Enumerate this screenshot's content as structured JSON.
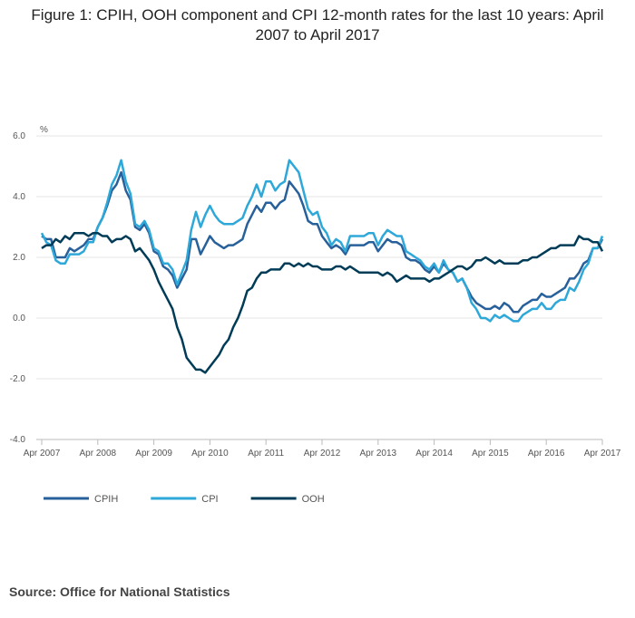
{
  "chart_data": {
    "type": "line",
    "title": "Figure 1: CPIH, OOH component and CPI 12-month rates for the last 10 years: April 2007 to April 2017",
    "y_label": "%",
    "source": "Source: Office for National Statistics",
    "categories": [
      "Apr 2007",
      null,
      null,
      null,
      null,
      null,
      null,
      null,
      null,
      null,
      null,
      null,
      "Apr 2008",
      null,
      null,
      null,
      null,
      null,
      null,
      null,
      null,
      null,
      null,
      null,
      "Apr 2009",
      null,
      null,
      null,
      null,
      null,
      null,
      null,
      null,
      null,
      null,
      null,
      "Apr 2010",
      null,
      null,
      null,
      null,
      null,
      null,
      null,
      null,
      null,
      null,
      null,
      "Apr 2011",
      null,
      null,
      null,
      null,
      null,
      null,
      null,
      null,
      null,
      null,
      null,
      "Apr 2012",
      null,
      null,
      null,
      null,
      null,
      null,
      null,
      null,
      null,
      null,
      null,
      "Apr 2013",
      null,
      null,
      null,
      null,
      null,
      null,
      null,
      null,
      null,
      null,
      null,
      "Apr 2014",
      null,
      null,
      null,
      null,
      null,
      null,
      null,
      null,
      null,
      null,
      null,
      "Apr 2015",
      null,
      null,
      null,
      null,
      null,
      null,
      null,
      null,
      null,
      null,
      null,
      "Apr 2016",
      null,
      null,
      null,
      null,
      null,
      null,
      null,
      null,
      null,
      null,
      null,
      "Apr 2017"
    ],
    "ylim": [
      -4,
      6
    ],
    "yticks": [
      {
        "value": -4,
        "label": "-4.0"
      },
      {
        "value": -2,
        "label": "-2.0"
      },
      {
        "value": 0,
        "label": "0.0"
      },
      {
        "value": 2,
        "label": "2.0"
      },
      {
        "value": 4,
        "label": "4.0"
      },
      {
        "value": 6,
        "label": "6.0"
      }
    ],
    "grid": true,
    "legend": "bottom-left",
    "series": [
      {
        "name": "CPIH",
        "color": "#27609a",
        "values": [
          2.7,
          2.6,
          2.6,
          2.0,
          2.0,
          2.0,
          2.3,
          2.2,
          2.3,
          2.4,
          2.6,
          2.6,
          3.0,
          3.3,
          3.7,
          4.2,
          4.4,
          4.8,
          4.2,
          3.9,
          3.0,
          2.9,
          3.1,
          2.8,
          2.2,
          2.1,
          1.7,
          1.6,
          1.4,
          1.0,
          1.3,
          1.6,
          2.6,
          2.6,
          2.1,
          2.4,
          2.7,
          2.5,
          2.4,
          2.3,
          2.4,
          2.4,
          2.5,
          2.6,
          3.1,
          3.4,
          3.7,
          3.5,
          3.8,
          3.8,
          3.6,
          3.8,
          3.9,
          4.5,
          4.3,
          4.1,
          3.7,
          3.2,
          3.1,
          3.1,
          2.7,
          2.5,
          2.3,
          2.4,
          2.3,
          2.1,
          2.4,
          2.4,
          2.4,
          2.4,
          2.5,
          2.5,
          2.2,
          2.4,
          2.6,
          2.5,
          2.5,
          2.4,
          2.0,
          1.9,
          1.9,
          1.8,
          1.6,
          1.5,
          1.7,
          1.5,
          1.8,
          1.6,
          1.5,
          1.2,
          1.3,
          1.0,
          0.7,
          0.5,
          0.4,
          0.3,
          0.3,
          0.4,
          0.3,
          0.5,
          0.4,
          0.2,
          0.2,
          0.4,
          0.5,
          0.6,
          0.6,
          0.8,
          0.7,
          0.7,
          0.8,
          0.9,
          1.0,
          1.3,
          1.3,
          1.5,
          1.8,
          1.9,
          2.3,
          2.3,
          2.6
        ]
      },
      {
        "name": "CPI",
        "color": "#2ea8d8",
        "values": [
          2.8,
          2.5,
          2.4,
          1.9,
          1.8,
          1.8,
          2.1,
          2.1,
          2.1,
          2.2,
          2.5,
          2.5,
          3.0,
          3.3,
          3.8,
          4.4,
          4.7,
          5.2,
          4.5,
          4.1,
          3.1,
          3.0,
          3.2,
          2.9,
          2.3,
          2.2,
          1.8,
          1.8,
          1.6,
          1.1,
          1.5,
          1.9,
          2.9,
          3.5,
          3.0,
          3.4,
          3.7,
          3.4,
          3.2,
          3.1,
          3.1,
          3.1,
          3.2,
          3.3,
          3.7,
          4.0,
          4.4,
          4.0,
          4.5,
          4.5,
          4.2,
          4.4,
          4.5,
          5.2,
          5.0,
          4.8,
          4.2,
          3.6,
          3.4,
          3.5,
          3.0,
          2.8,
          2.4,
          2.6,
          2.5,
          2.2,
          2.7,
          2.7,
          2.7,
          2.7,
          2.8,
          2.8,
          2.4,
          2.7,
          2.9,
          2.8,
          2.7,
          2.7,
          2.2,
          2.1,
          2.0,
          1.9,
          1.7,
          1.6,
          1.8,
          1.5,
          1.9,
          1.6,
          1.5,
          1.2,
          1.3,
          1.0,
          0.5,
          0.3,
          0.0,
          0.0,
          -0.1,
          0.1,
          0.0,
          0.1,
          0.0,
          -0.1,
          -0.1,
          0.1,
          0.2,
          0.3,
          0.3,
          0.5,
          0.3,
          0.3,
          0.5,
          0.6,
          0.6,
          1.0,
          0.9,
          1.2,
          1.6,
          1.8,
          2.3,
          2.3,
          2.7
        ]
      },
      {
        "name": "OOH",
        "color": "#003c57",
        "values": [
          2.3,
          2.4,
          2.4,
          2.6,
          2.5,
          2.7,
          2.6,
          2.8,
          2.8,
          2.8,
          2.7,
          2.8,
          2.8,
          2.7,
          2.7,
          2.5,
          2.6,
          2.6,
          2.7,
          2.6,
          2.2,
          2.3,
          2.1,
          1.9,
          1.6,
          1.2,
          0.9,
          0.6,
          0.3,
          -0.3,
          -0.7,
          -1.3,
          -1.5,
          -1.7,
          -1.7,
          -1.8,
          -1.6,
          -1.4,
          -1.2,
          -0.9,
          -0.7,
          -0.3,
          0.0,
          0.4,
          0.9,
          1.0,
          1.3,
          1.5,
          1.5,
          1.6,
          1.6,
          1.6,
          1.8,
          1.8,
          1.7,
          1.8,
          1.7,
          1.8,
          1.7,
          1.7,
          1.6,
          1.6,
          1.6,
          1.7,
          1.7,
          1.6,
          1.7,
          1.6,
          1.5,
          1.5,
          1.5,
          1.5,
          1.5,
          1.4,
          1.5,
          1.4,
          1.2,
          1.3,
          1.4,
          1.3,
          1.3,
          1.3,
          1.3,
          1.2,
          1.3,
          1.3,
          1.4,
          1.5,
          1.6,
          1.7,
          1.7,
          1.6,
          1.7,
          1.9,
          1.9,
          2.0,
          1.9,
          1.8,
          1.9,
          1.8,
          1.8,
          1.8,
          1.8,
          1.9,
          1.9,
          2.0,
          2.0,
          2.1,
          2.2,
          2.3,
          2.3,
          2.4,
          2.4,
          2.4,
          2.4,
          2.7,
          2.6,
          2.6,
          2.5,
          2.5,
          2.2
        ]
      }
    ]
  }
}
